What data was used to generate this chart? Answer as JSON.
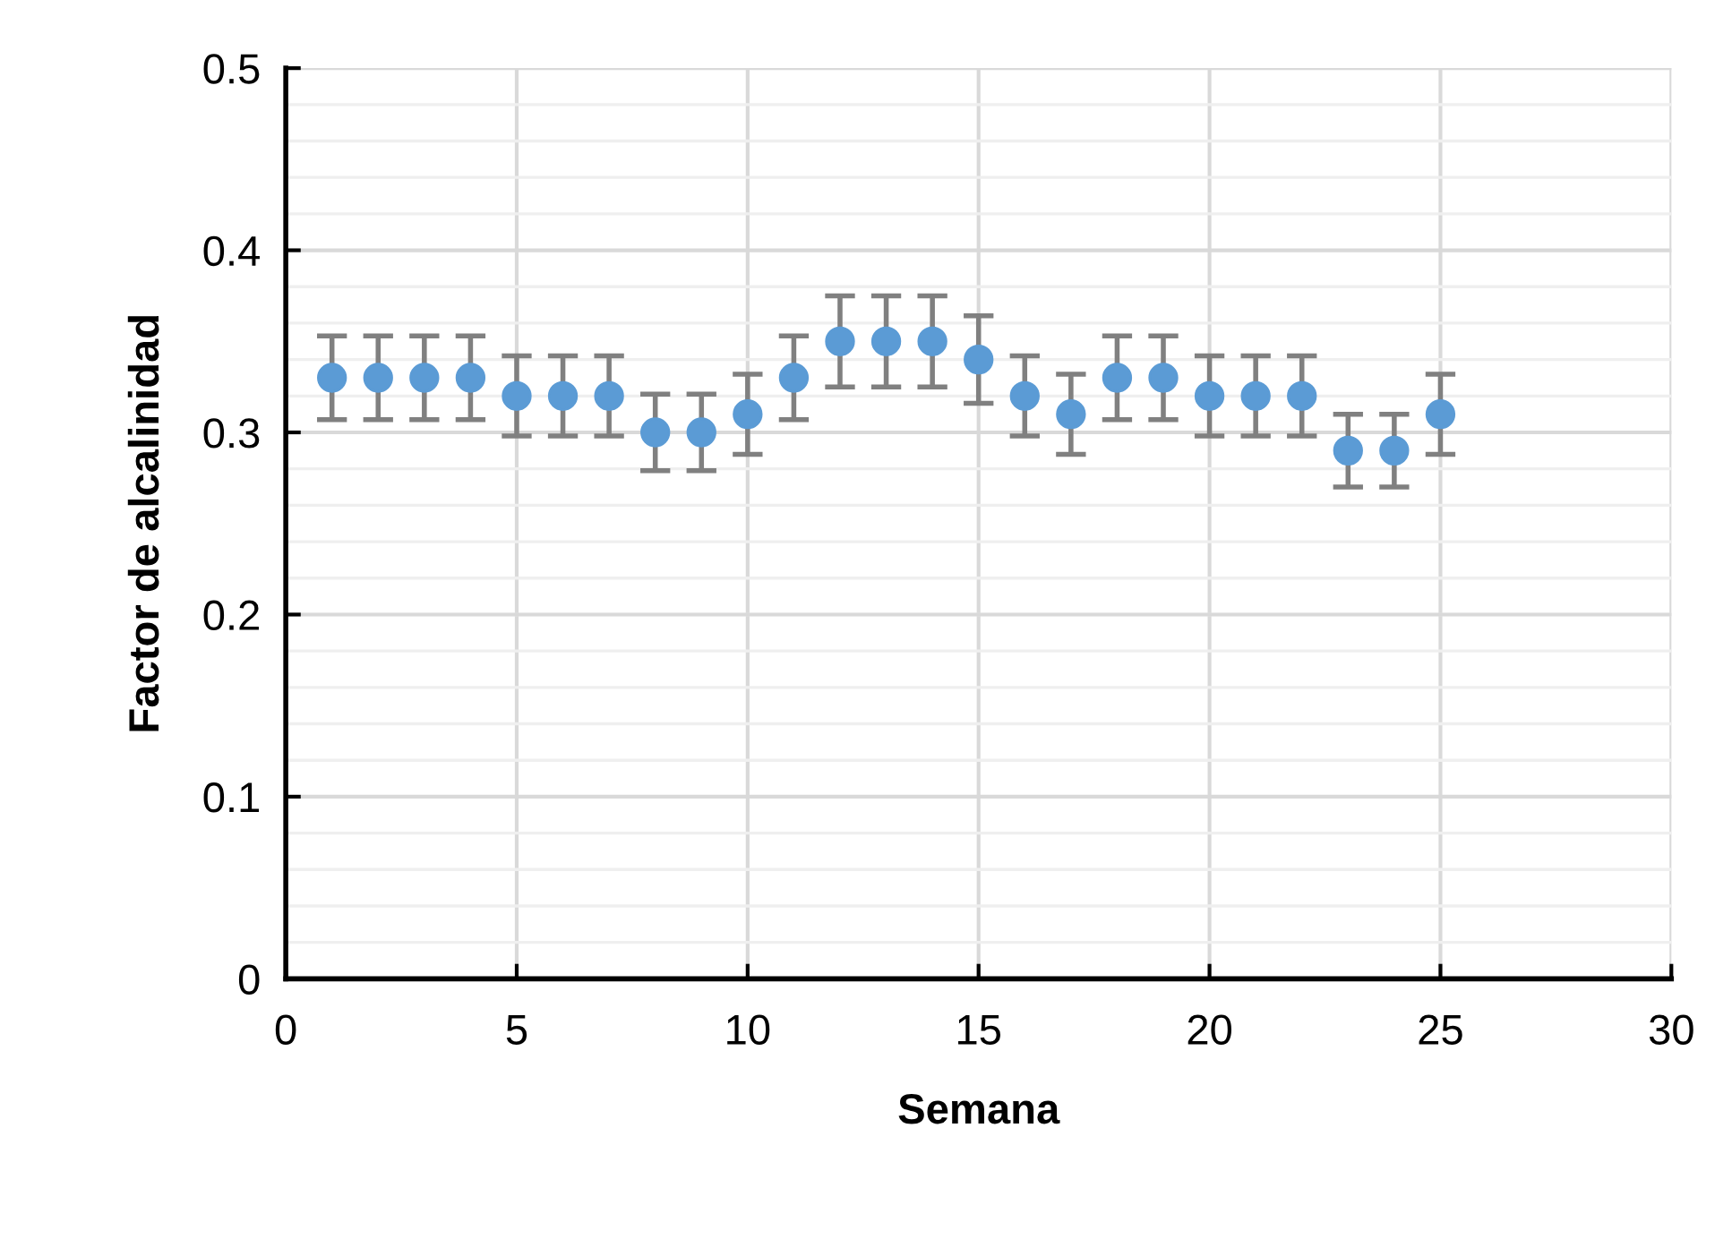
{
  "chart_data": {
    "type": "scatter",
    "xlabel": "Semana",
    "ylabel": "Factor de alcalinidad",
    "x": [
      1,
      2,
      3,
      4,
      5,
      6,
      7,
      8,
      9,
      10,
      11,
      12,
      13,
      14,
      15,
      16,
      17,
      18,
      19,
      20,
      21,
      22,
      23,
      24,
      25
    ],
    "values": [
      0.33,
      0.33,
      0.33,
      0.33,
      0.32,
      0.32,
      0.32,
      0.3,
      0.3,
      0.31,
      0.33,
      0.35,
      0.35,
      0.35,
      0.34,
      0.32,
      0.31,
      0.33,
      0.33,
      0.32,
      0.32,
      0.32,
      0.29,
      0.29,
      0.31
    ],
    "errors": [
      0.023,
      0.023,
      0.023,
      0.023,
      0.022,
      0.022,
      0.022,
      0.021,
      0.021,
      0.022,
      0.023,
      0.025,
      0.025,
      0.025,
      0.024,
      0.022,
      0.022,
      0.023,
      0.023,
      0.022,
      0.022,
      0.022,
      0.02,
      0.02,
      0.022
    ],
    "color": "#5b9bd5",
    "marker": "circle",
    "grid": true,
    "xlim": [
      0,
      30
    ],
    "xticks": [
      0,
      5,
      10,
      15,
      20,
      25,
      30
    ],
    "ylim": [
      0,
      0.5
    ],
    "yticks": [
      0,
      0.1,
      0.2,
      0.3,
      0.4,
      0.5
    ]
  }
}
